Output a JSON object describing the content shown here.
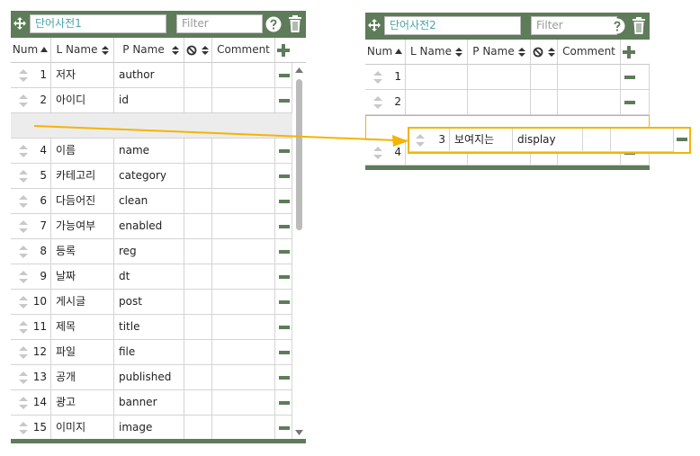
{
  "panels": [
    {
      "title": "단어사전1",
      "filter_placeholder": "Filter",
      "columns": [
        "Num",
        "L Name",
        "P Name",
        "Comment"
      ],
      "rows": [
        {
          "num": 1,
          "l_name": "저자",
          "p_name": "author"
        },
        {
          "num": 2,
          "l_name": "아이디",
          "p_name": "id"
        },
        {
          "num": 4,
          "l_name": "이름",
          "p_name": "name"
        },
        {
          "num": 5,
          "l_name": "카테고리",
          "p_name": "category"
        },
        {
          "num": 6,
          "l_name": "다듬어진",
          "p_name": "clean"
        },
        {
          "num": 7,
          "l_name": "가능여부",
          "p_name": "enabled"
        },
        {
          "num": 8,
          "l_name": "등록",
          "p_name": "reg"
        },
        {
          "num": 9,
          "l_name": "날짜",
          "p_name": "dt"
        },
        {
          "num": 10,
          "l_name": "게시글",
          "p_name": "post"
        },
        {
          "num": 11,
          "l_name": "제목",
          "p_name": "title"
        },
        {
          "num": 12,
          "l_name": "파일",
          "p_name": "file"
        },
        {
          "num": 13,
          "l_name": "공개",
          "p_name": "published"
        },
        {
          "num": 14,
          "l_name": "광고",
          "p_name": "banner"
        },
        {
          "num": 15,
          "l_name": "이미지",
          "p_name": "image"
        }
      ]
    },
    {
      "title": "단어사전2",
      "filter_placeholder": "Filter",
      "columns": [
        "Num",
        "L Name",
        "P Name",
        "Comment"
      ],
      "rows": [
        {
          "num": 1
        },
        {
          "num": 2
        },
        {
          "num": 4
        }
      ]
    }
  ],
  "dragged_row": {
    "num": 3,
    "l_name": "보여지는",
    "p_name": "display"
  }
}
